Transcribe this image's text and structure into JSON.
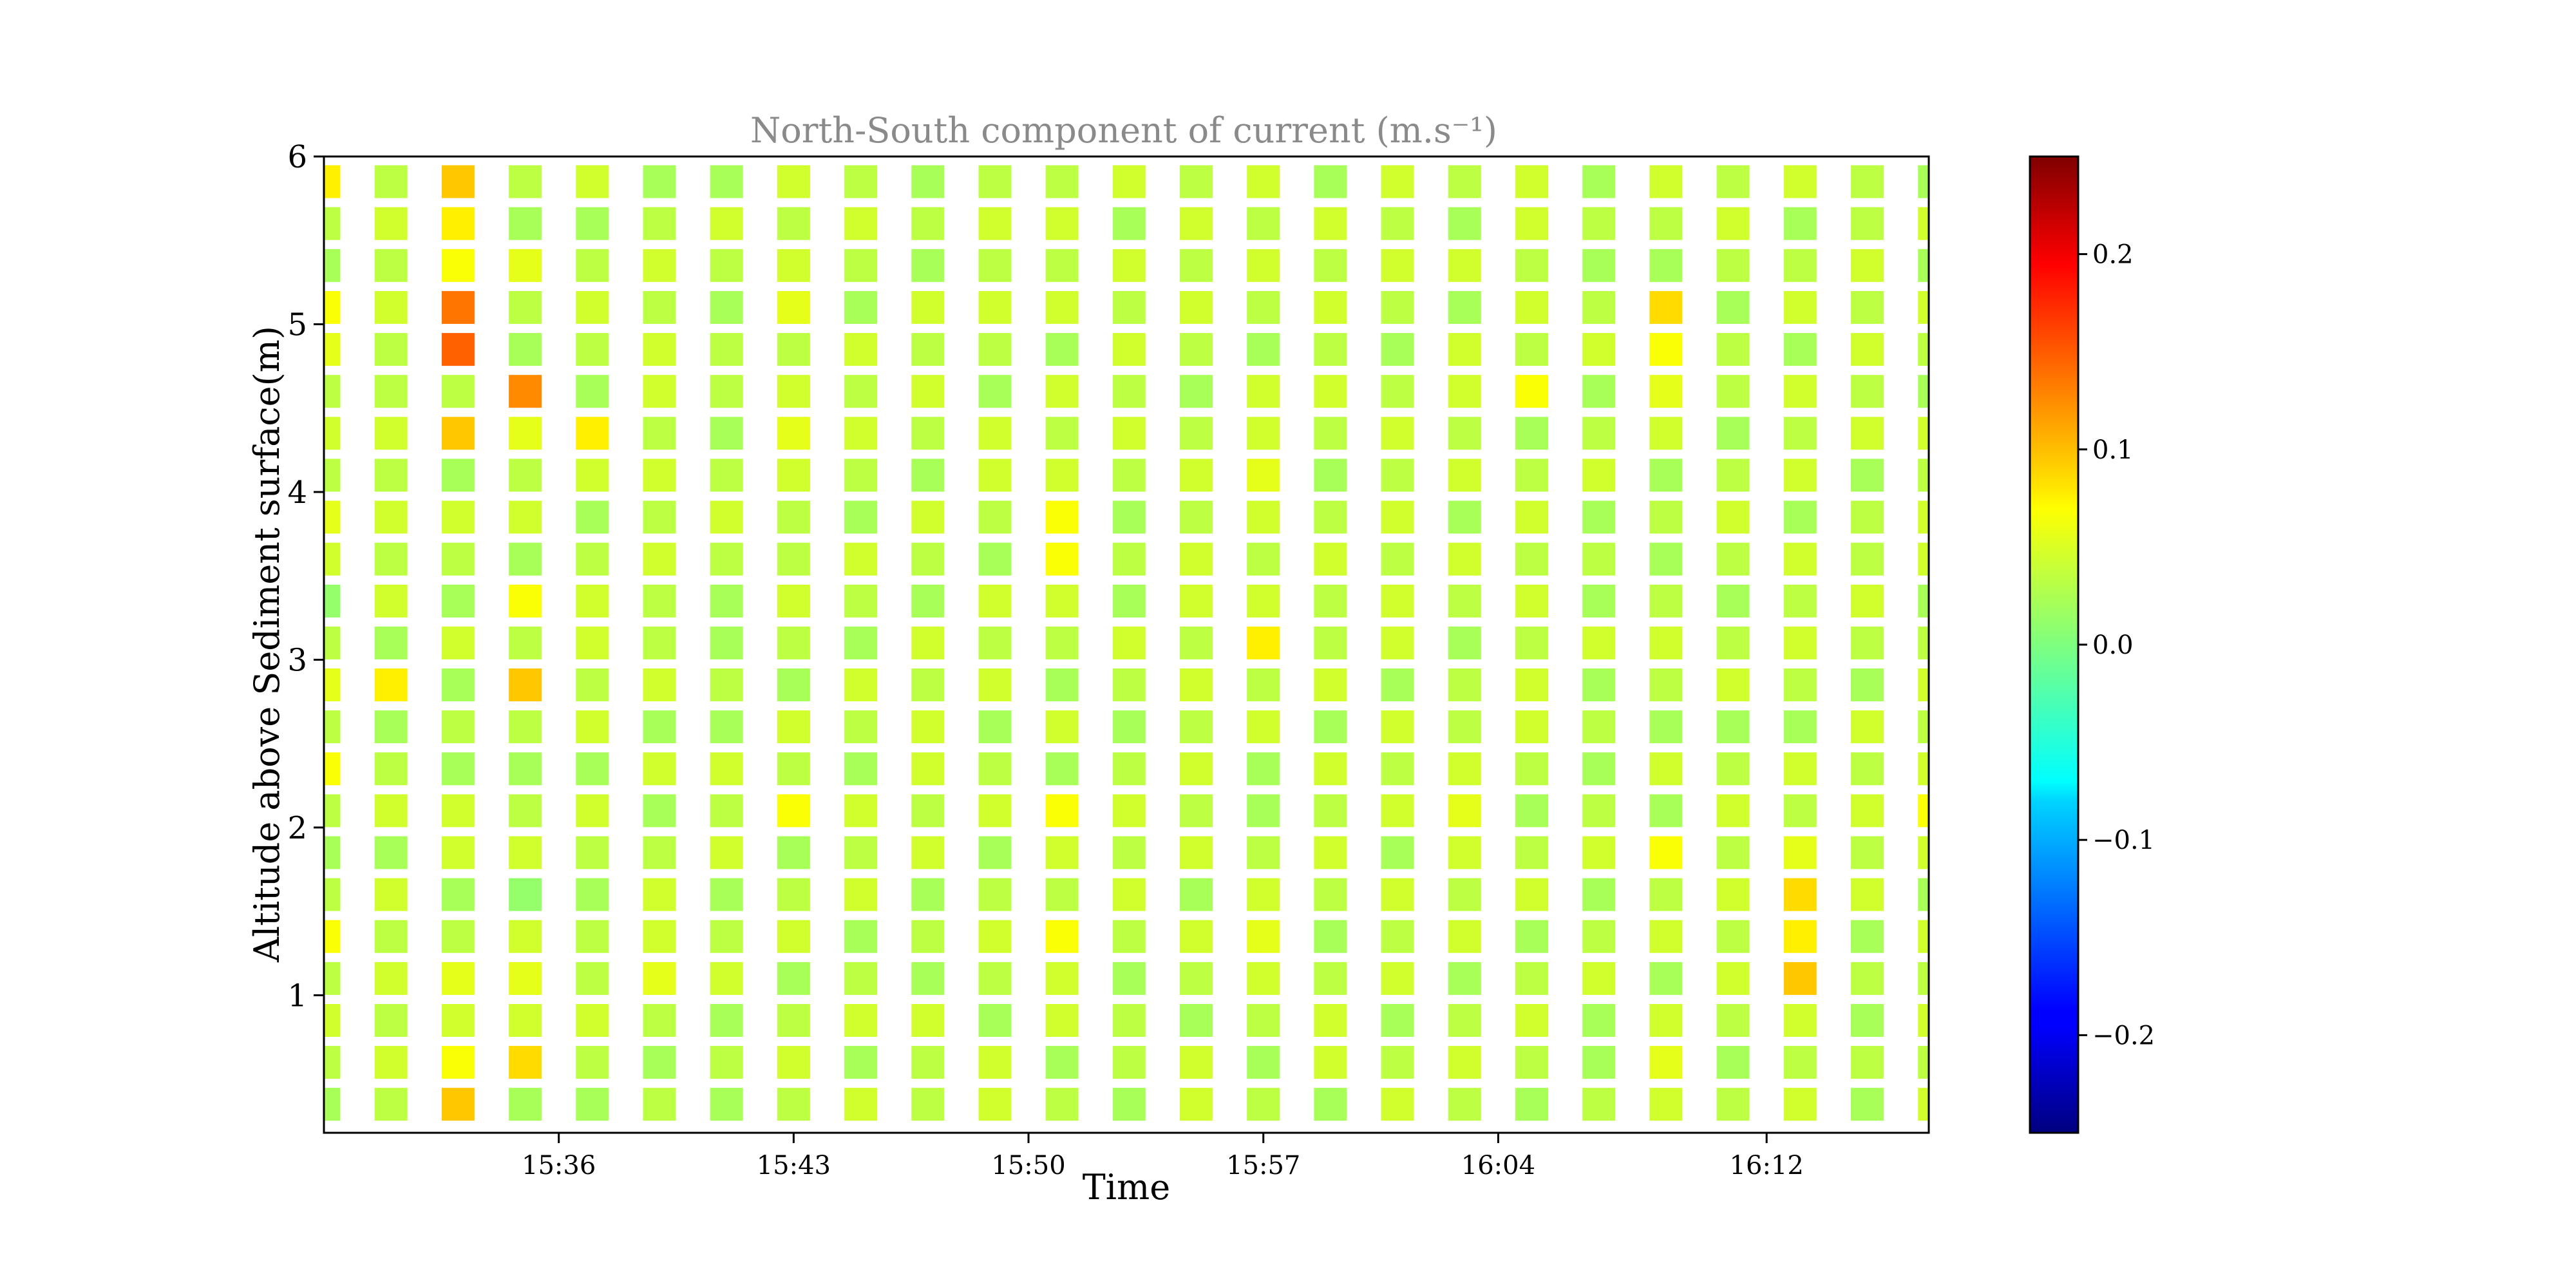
{
  "chart_data": {
    "type": "heatmap",
    "title": "North-South component of current (m.s⁻¹)",
    "xlabel": "Time",
    "ylabel": "Altitude above Sediment surface(m)",
    "colormap": "jet",
    "ylim": [
      0.18,
      6.0
    ],
    "yticks": [
      1,
      2,
      3,
      4,
      5,
      6
    ],
    "xlim": [
      "15:29:00",
      "16:16:50"
    ],
    "xticks": [
      "15:36",
      "15:43",
      "15:50",
      "15:57",
      "16:04",
      "16:12"
    ],
    "colorbar": {
      "vmin": -0.25,
      "vmax": 0.25,
      "ticks": [
        0.2,
        0.1,
        0.0,
        -0.1,
        -0.2
      ],
      "tick_labels": [
        "0.2",
        "0.1",
        "0.0",
        "−0.1",
        "−0.2"
      ]
    },
    "times": [
      "15:29:00",
      "15:31:00",
      "15:33:00",
      "15:35:00",
      "15:37:00",
      "15:39:00",
      "15:41:00",
      "15:43:00",
      "15:45:00",
      "15:47:00",
      "15:49:00",
      "15:51:00",
      "15:53:00",
      "15:55:00",
      "15:57:00",
      "15:59:00",
      "16:01:00",
      "16:03:00",
      "16:05:00",
      "16:07:00",
      "16:09:00",
      "16:11:00",
      "16:13:00",
      "16:15:00",
      "16:17:00"
    ],
    "depths": [
      0.35,
      0.6,
      0.85,
      1.1,
      1.35,
      1.6,
      1.85,
      2.1,
      2.35,
      2.6,
      2.85,
      3.1,
      3.35,
      3.6,
      3.85,
      4.1,
      4.35,
      4.6,
      4.85,
      5.1,
      5.35,
      5.6,
      5.85,
      6.1
    ],
    "values": [
      [
        0.02,
        0.03,
        0.04,
        0.03,
        0.06,
        0.03,
        0.02,
        0.03,
        0.06,
        0.03,
        0.05,
        0.03,
        0.01,
        0.04,
        0.05,
        0.03,
        0.04,
        0.03,
        0.05,
        0.06,
        0.02,
        0.03,
        0.07,
        0.04
      ],
      [
        0.03,
        0.04,
        0.03,
        0.04,
        0.03,
        0.04,
        0.02,
        0.04,
        0.03,
        0.02,
        0.07,
        0.02,
        0.04,
        0.03,
        0.04,
        0.03,
        0.04,
        0.03,
        0.03,
        0.04,
        0.03,
        0.04,
        0.03,
        0.09
      ],
      [
        0.09,
        0.06,
        0.04,
        0.05,
        0.03,
        0.02,
        0.04,
        0.04,
        0.02,
        0.03,
        0.02,
        0.04,
        0.02,
        0.03,
        0.04,
        0.02,
        0.09,
        0.03,
        0.14,
        0.13,
        0.06,
        0.07,
        0.09,
        0.0
      ],
      [
        0.02,
        0.08,
        0.04,
        0.05,
        0.04,
        0.01,
        0.04,
        0.03,
        0.02,
        0.03,
        0.09,
        0.03,
        0.06,
        0.02,
        0.04,
        0.03,
        0.05,
        0.12,
        0.02,
        0.03,
        0.05,
        0.02,
        0.03,
        0.0
      ],
      [
        0.02,
        0.03,
        0.04,
        0.03,
        0.03,
        0.02,
        0.03,
        0.04,
        0.02,
        0.04,
        0.03,
        0.04,
        0.04,
        0.03,
        0.02,
        0.04,
        0.07,
        0.02,
        0.03,
        0.04,
        0.03,
        0.02,
        0.04,
        0.0
      ],
      [
        0.03,
        0.02,
        0.03,
        0.05,
        0.04,
        0.04,
        0.03,
        0.02,
        0.04,
        0.02,
        0.04,
        0.03,
        0.03,
        0.04,
        0.03,
        0.04,
        0.03,
        0.04,
        0.04,
        0.03,
        0.04,
        0.03,
        0.02,
        0.0
      ],
      [
        0.02,
        0.03,
        0.02,
        0.04,
        0.03,
        0.02,
        0.04,
        0.03,
        0.04,
        0.02,
        0.03,
        0.02,
        0.02,
        0.03,
        0.04,
        0.03,
        0.02,
        0.03,
        0.03,
        0.02,
        0.03,
        0.04,
        0.02,
        0.0
      ],
      [
        0.03,
        0.04,
        0.03,
        0.02,
        0.04,
        0.03,
        0.02,
        0.06,
        0.03,
        0.04,
        0.02,
        0.03,
        0.04,
        0.03,
        0.03,
        0.04,
        0.05,
        0.04,
        0.03,
        0.05,
        0.04,
        0.03,
        0.04,
        0.02
      ],
      [
        0.04,
        0.02,
        0.04,
        0.03,
        0.02,
        0.04,
        0.03,
        0.04,
        0.02,
        0.03,
        0.04,
        0.02,
        0.03,
        0.04,
        0.02,
        0.03,
        0.04,
        0.03,
        0.04,
        0.02,
        0.03,
        0.04,
        0.03,
        0.03
      ],
      [
        0.03,
        0.03,
        0.04,
        0.02,
        0.03,
        0.02,
        0.04,
        0.03,
        0.04,
        0.04,
        0.03,
        0.04,
        0.02,
        0.03,
        0.04,
        0.02,
        0.03,
        0.04,
        0.03,
        0.04,
        0.02,
        0.03,
        0.02,
        0.04
      ],
      [
        0.04,
        0.04,
        0.02,
        0.03,
        0.04,
        0.03,
        0.02,
        0.04,
        0.03,
        0.02,
        0.04,
        0.03,
        0.04,
        0.02,
        0.03,
        0.04,
        0.04,
        0.02,
        0.03,
        0.04,
        0.03,
        0.04,
        0.03,
        0.02
      ],
      [
        0.03,
        0.02,
        0.04,
        0.04,
        0.06,
        0.03,
        0.04,
        0.06,
        0.02,
        0.04,
        0.02,
        0.03,
        0.04,
        0.06,
        0.06,
        0.04,
        0.03,
        0.04,
        0.02,
        0.04,
        0.03,
        0.04,
        0.03,
        0.04
      ],
      [
        0.02,
        0.03,
        0.03,
        0.02,
        0.03,
        0.04,
        0.03,
        0.04,
        0.03,
        0.02,
        0.03,
        0.04,
        0.02,
        0.03,
        0.02,
        0.03,
        0.04,
        0.03,
        0.04,
        0.03,
        0.04,
        0.02,
        0.04,
        0.03
      ],
      [
        0.04,
        0.04,
        0.02,
        0.03,
        0.04,
        0.02,
        0.04,
        0.03,
        0.04,
        0.03,
        0.04,
        0.03,
        0.04,
        0.04,
        0.03,
        0.04,
        0.03,
        0.02,
        0.03,
        0.04,
        0.03,
        0.04,
        0.03,
        0.04
      ],
      [
        0.03,
        0.02,
        0.03,
        0.04,
        0.05,
        0.04,
        0.03,
        0.02,
        0.02,
        0.04,
        0.03,
        0.07,
        0.04,
        0.03,
        0.04,
        0.05,
        0.04,
        0.04,
        0.02,
        0.03,
        0.04,
        0.03,
        0.04,
        0.02
      ],
      [
        0.02,
        0.04,
        0.04,
        0.03,
        0.02,
        0.03,
        0.04,
        0.03,
        0.04,
        0.02,
        0.04,
        0.03,
        0.03,
        0.04,
        0.03,
        0.02,
        0.03,
        0.04,
        0.03,
        0.04,
        0.03,
        0.04,
        0.02,
        0.03
      ],
      [
        0.04,
        0.03,
        0.02,
        0.04,
        0.03,
        0.04,
        0.02,
        0.04,
        0.03,
        0.04,
        0.02,
        0.04,
        0.04,
        0.03,
        0.04,
        0.03,
        0.04,
        0.03,
        0.02,
        0.03,
        0.04,
        0.03,
        0.04,
        0.04
      ],
      [
        0.03,
        0.04,
        0.03,
        0.02,
        0.04,
        0.03,
        0.04,
        0.05,
        0.04,
        0.03,
        0.03,
        0.02,
        0.03,
        0.04,
        0.02,
        0.04,
        0.03,
        0.04,
        0.04,
        0.02,
        0.04,
        0.02,
        0.03,
        0.02
      ],
      [
        0.02,
        0.03,
        0.04,
        0.03,
        0.02,
        0.04,
        0.03,
        0.02,
        0.03,
        0.04,
        0.04,
        0.03,
        0.04,
        0.03,
        0.04,
        0.03,
        0.02,
        0.06,
        0.03,
        0.04,
        0.03,
        0.04,
        0.04,
        0.03
      ],
      [
        0.03,
        0.02,
        0.02,
        0.04,
        0.03,
        0.02,
        0.04,
        0.03,
        0.02,
        0.03,
        0.02,
        0.04,
        0.02,
        0.03,
        0.02,
        0.04,
        0.03,
        0.02,
        0.04,
        0.03,
        0.02,
        0.03,
        0.02,
        0.04
      ],
      [
        0.04,
        0.05,
        0.04,
        0.02,
        0.04,
        0.03,
        0.06,
        0.02,
        0.04,
        0.02,
        0.03,
        0.04,
        0.03,
        0.02,
        0.03,
        0.02,
        0.04,
        0.05,
        0.06,
        0.08,
        0.02,
        0.03,
        0.04,
        0.03
      ],
      [
        0.03,
        0.02,
        0.03,
        0.04,
        0.03,
        0.04,
        0.03,
        0.04,
        0.03,
        0.02,
        0.04,
        0.03,
        0.02,
        0.03,
        0.04,
        0.03,
        0.02,
        0.03,
        0.03,
        0.02,
        0.03,
        0.04,
        0.03,
        0.02
      ],
      [
        0.04,
        0.03,
        0.04,
        0.09,
        0.07,
        0.08,
        0.05,
        0.03,
        0.04,
        0.02,
        0.03,
        0.04,
        0.03,
        0.04,
        0.02,
        0.04,
        0.03,
        0.04,
        0.02,
        0.04,
        0.03,
        0.02,
        0.04,
        0.03
      ],
      [
        0.02,
        0.03,
        0.02,
        0.03,
        0.02,
        0.04,
        0.03,
        0.04,
        0.03,
        0.04,
        0.02,
        0.03,
        0.04,
        0.03,
        0.03,
        0.02,
        0.04,
        0.03,
        0.04,
        0.03,
        0.04,
        0.03,
        0.03,
        0.04
      ],
      [
        0.04,
        0.03,
        0.04,
        0.03,
        0.04,
        0.02,
        0.04,
        0.06,
        0.04,
        0.03,
        0.04,
        0.03,
        0.02,
        0.04,
        0.04,
        0.03,
        0.04,
        0.02,
        0.03,
        0.04,
        0.02,
        0.04,
        0.02,
        0.03
      ]
    ]
  }
}
